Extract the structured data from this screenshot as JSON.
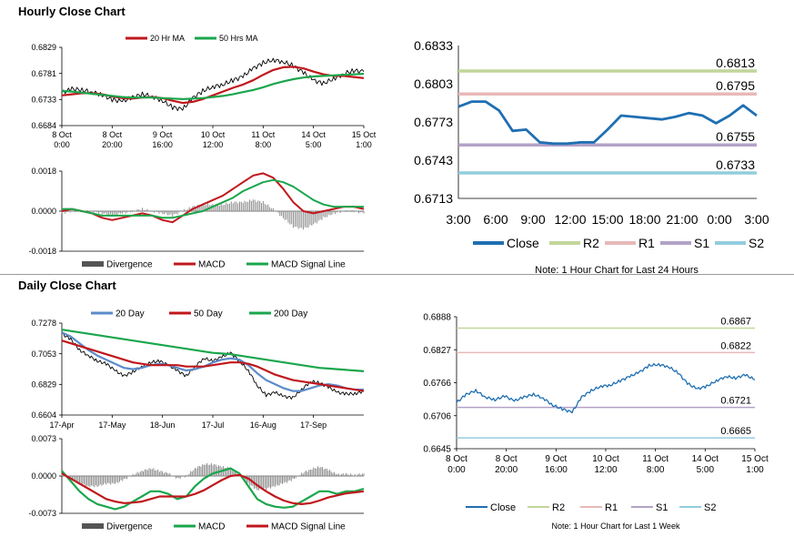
{
  "sections": {
    "hourly_title": "Hourly Close Chart",
    "daily_title": "Daily Close Chart"
  },
  "colors": {
    "close": "#1f6fb2",
    "ma20": "#c0171c",
    "ma50": "#1aa64c",
    "day20": "#5b8bc9",
    "day50": "#c0171c",
    "day200": "#1aa64c",
    "divergence": "#8c8c8c",
    "macd": "#c0171c",
    "signal": "#1aa64c",
    "r2": "#c2d69b",
    "r1": "#e6b9b8",
    "s1": "#b2a2c7",
    "s2": "#93cddd",
    "price": "#000000"
  },
  "chart_data": [
    {
      "id": "hourly-price",
      "type": "line",
      "legend": [
        "20 Hr MA",
        "50 Hrs MA"
      ],
      "ylim": [
        0.6684,
        0.6829
      ],
      "yticks": [
        "0.6829",
        "0.6781",
        "0.6733",
        "0.6684"
      ],
      "xlabels": [
        [
          "8 Oct",
          "0:00"
        ],
        [
          "8 Oct",
          "20:00"
        ],
        [
          "9 Oct",
          "16:00"
        ],
        [
          "10 Oct",
          "12:00"
        ],
        [
          "11 Oct",
          "8:00"
        ],
        [
          "14 Oct",
          "5:00"
        ],
        [
          "15 Oct",
          "1:00"
        ]
      ],
      "price": [
        0.6745,
        0.6752,
        0.675,
        0.6746,
        0.6741,
        0.6732,
        0.6729,
        0.6736,
        0.6742,
        0.6738,
        0.673,
        0.6718,
        0.6714,
        0.6735,
        0.6748,
        0.6756,
        0.676,
        0.6768,
        0.6775,
        0.679,
        0.68,
        0.6806,
        0.6802,
        0.6795,
        0.6782,
        0.6768,
        0.6762,
        0.6771,
        0.678,
        0.6786,
        0.6784
      ],
      "ma20": [
        0.674,
        0.6742,
        0.6744,
        0.6744,
        0.6742,
        0.6738,
        0.6735,
        0.6734,
        0.6736,
        0.6737,
        0.6735,
        0.673,
        0.6726,
        0.6728,
        0.6733,
        0.674,
        0.6747,
        0.6754,
        0.676,
        0.6768,
        0.6778,
        0.6787,
        0.6792,
        0.6793,
        0.679,
        0.6784,
        0.6779,
        0.6776,
        0.6776,
        0.6774,
        0.6772
      ],
      "ma50": [
        0.6748,
        0.6747,
        0.6745,
        0.6743,
        0.6741,
        0.6739,
        0.6737,
        0.6736,
        0.6736,
        0.6736,
        0.6735,
        0.6734,
        0.6733,
        0.6734,
        0.6735,
        0.6737,
        0.6739,
        0.6742,
        0.6746,
        0.675,
        0.6755,
        0.6761,
        0.6766,
        0.677,
        0.6773,
        0.6775,
        0.6776,
        0.6777,
        0.6778,
        0.6779,
        0.678
      ]
    },
    {
      "id": "hourly-macd",
      "type": "bar",
      "legend": [
        "Divergence",
        "MACD",
        "MACD Signal Line"
      ],
      "ylim": [
        -0.0018,
        0.0018
      ],
      "yticks": [
        "0.0018",
        "0.0000",
        "-0.0018"
      ],
      "macd": [
        0.0,
        0.0001,
        0.0,
        -0.0001,
        -0.0003,
        -0.0004,
        -0.0003,
        -0.0002,
        -0.0001,
        -0.0002,
        -0.0004,
        -0.0005,
        -0.0002,
        0.0001,
        0.0003,
        0.0005,
        0.0007,
        0.001,
        0.0013,
        0.0016,
        0.0017,
        0.0015,
        0.001,
        0.0004,
        0.0,
        -0.0001,
        0.0,
        0.0001,
        0.0002,
        0.0002,
        0.0001
      ],
      "signal": [
        0.0001,
        0.0001,
        0.0,
        -0.0001,
        -0.0002,
        -0.0002,
        -0.0002,
        -0.0002,
        -0.0002,
        -0.0002,
        -0.0003,
        -0.0003,
        -0.0002,
        -0.0001,
        0.0,
        0.0002,
        0.0004,
        0.0006,
        0.0009,
        0.0011,
        0.0013,
        0.0014,
        0.0013,
        0.0011,
        0.0008,
        0.0005,
        0.0003,
        0.0002,
        0.0002,
        0.0002,
        0.0002
      ],
      "divergence": [
        -0.0001,
        0.0,
        0.0,
        0.0,
        -0.0001,
        -0.0002,
        -0.0001,
        0.0,
        0.0001,
        0.0,
        -0.0001,
        -0.0002,
        0.0,
        0.0002,
        0.0003,
        0.0003,
        0.0003,
        0.0004,
        0.0004,
        0.0005,
        0.0004,
        0.0001,
        -0.0003,
        -0.0007,
        -0.0008,
        -0.0006,
        -0.0003,
        -0.0001,
        0.0,
        0.0,
        -0.0001
      ]
    },
    {
      "id": "hourly-24h",
      "type": "line",
      "legend": [
        "Close",
        "R2",
        "R1",
        "S1",
        "S2"
      ],
      "ylim": [
        0.6713,
        0.6833
      ],
      "yticks": [
        "0.6833",
        "0.6803",
        "0.6773",
        "0.6743",
        "0.6713"
      ],
      "xlabels": [
        "3:00",
        "6:00",
        "9:00",
        "12:00",
        "15:00",
        "18:00",
        "21:00",
        "0:00",
        "3:00"
      ],
      "close": [
        0.6785,
        0.6789,
        0.6789,
        0.6782,
        0.6766,
        0.6767,
        0.6757,
        0.6756,
        0.6756,
        0.6757,
        0.6757,
        0.6767,
        0.6778,
        0.6777,
        0.6776,
        0.6775,
        0.6777,
        0.678,
        0.6778,
        0.6772,
        0.6778,
        0.6786,
        0.6778
      ],
      "levels": {
        "r2": 0.6813,
        "r1": 0.6795,
        "s1": 0.6755,
        "s2": 0.6733
      },
      "level_labels": [
        "0.6813",
        "0.6795",
        "0.6755",
        "0.6733"
      ],
      "note": "Note: 1 Hour Chart for Last 24 Hours"
    },
    {
      "id": "daily-price",
      "type": "line",
      "legend": [
        "20 Day",
        "50 Day",
        "200 Day"
      ],
      "ylim": [
        0.6604,
        0.7278
      ],
      "yticks": [
        "0.7278",
        "0.7053",
        "0.6829",
        "0.6604"
      ],
      "xlabels": [
        "17-Apr",
        "17-May",
        "18-Jun",
        "17-Jul",
        "16-Aug",
        "17-Sep"
      ],
      "price": [
        0.72,
        0.716,
        0.708,
        0.704,
        0.7,
        0.698,
        0.693,
        0.689,
        0.692,
        0.696,
        0.699,
        0.7,
        0.697,
        0.693,
        0.689,
        0.696,
        0.702,
        0.7,
        0.703,
        0.706,
        0.7,
        0.693,
        0.682,
        0.675,
        0.677,
        0.674,
        0.673,
        0.679,
        0.685,
        0.684,
        0.681,
        0.677,
        0.676,
        0.676,
        0.678
      ],
      "day20": [
        0.721,
        0.718,
        0.713,
        0.708,
        0.704,
        0.701,
        0.698,
        0.695,
        0.694,
        0.695,
        0.697,
        0.698,
        0.697,
        0.695,
        0.693,
        0.694,
        0.696,
        0.699,
        0.701,
        0.702,
        0.701,
        0.697,
        0.691,
        0.686,
        0.683,
        0.68,
        0.678,
        0.678,
        0.68,
        0.682,
        0.683,
        0.682,
        0.68,
        0.679,
        0.679
      ],
      "day50": [
        0.715,
        0.713,
        0.711,
        0.709,
        0.707,
        0.705,
        0.703,
        0.701,
        0.699,
        0.698,
        0.697,
        0.697,
        0.697,
        0.697,
        0.696,
        0.696,
        0.696,
        0.697,
        0.698,
        0.699,
        0.699,
        0.698,
        0.696,
        0.693,
        0.69,
        0.688,
        0.686,
        0.685,
        0.684,
        0.683,
        0.682,
        0.681,
        0.68,
        0.679,
        0.678
      ],
      "day200": [
        0.723,
        0.722,
        0.721,
        0.72,
        0.719,
        0.718,
        0.717,
        0.716,
        0.715,
        0.714,
        0.713,
        0.712,
        0.711,
        0.71,
        0.709,
        0.708,
        0.707,
        0.706,
        0.7055,
        0.705,
        0.704,
        0.703,
        0.702,
        0.701,
        0.7,
        0.699,
        0.698,
        0.697,
        0.696,
        0.695,
        0.6945,
        0.694,
        0.6935,
        0.693,
        0.6925
      ]
    },
    {
      "id": "daily-macd",
      "type": "bar",
      "legend": [
        "Divergence",
        "MACD",
        "MACD Signal Line"
      ],
      "ylim": [
        -0.0073,
        0.0073
      ],
      "yticks": [
        "0.0073",
        "0.0000",
        "-0.0073"
      ],
      "macd": [
        0.001,
        -0.001,
        -0.003,
        -0.0045,
        -0.0055,
        -0.006,
        -0.0065,
        -0.006,
        -0.005,
        -0.004,
        -0.003,
        -0.003,
        -0.0035,
        -0.0045,
        -0.004,
        -0.002,
        -0.0005,
        0.0005,
        0.001,
        0.0015,
        0.0005,
        -0.002,
        -0.0045,
        -0.0055,
        -0.006,
        -0.0062,
        -0.006,
        -0.005,
        -0.004,
        -0.003,
        -0.003,
        -0.0035,
        -0.003,
        -0.003,
        -0.0025
      ],
      "signal": [
        0.0005,
        -0.0005,
        -0.0015,
        -0.0025,
        -0.0035,
        -0.0045,
        -0.005,
        -0.0053,
        -0.0052,
        -0.005,
        -0.0045,
        -0.004,
        -0.004,
        -0.004,
        -0.004,
        -0.0035,
        -0.0028,
        -0.0018,
        -0.0008,
        0.0,
        0.0002,
        -0.0005,
        -0.0018,
        -0.003,
        -0.004,
        -0.0048,
        -0.0053,
        -0.0055,
        -0.0053,
        -0.0048,
        -0.0042,
        -0.0038,
        -0.0034,
        -0.0032,
        -0.003
      ],
      "divergence": [
        0.0005,
        -0.0005,
        -0.0015,
        -0.002,
        -0.002,
        -0.0015,
        -0.0015,
        -0.0007,
        0.0002,
        0.001,
        0.0015,
        0.001,
        0.0005,
        -0.0005,
        0.0,
        0.0015,
        0.0023,
        0.0023,
        0.0018,
        0.0015,
        0.0003,
        -0.0015,
        -0.0027,
        -0.0025,
        -0.002,
        -0.0014,
        -0.0007,
        0.0005,
        0.0013,
        0.0018,
        0.0012,
        0.0003,
        0.0004,
        0.0002,
        0.0005
      ]
    },
    {
      "id": "weekly",
      "type": "line",
      "legend": [
        "Close",
        "R2",
        "R1",
        "S1",
        "S2"
      ],
      "ylim": [
        0.6645,
        0.6888
      ],
      "yticks": [
        "0.6888",
        "0.6827",
        "0.6766",
        "0.6706",
        "0.6645"
      ],
      "xlabels": [
        [
          "8 Oct",
          "0:00"
        ],
        [
          "8 Oct",
          "20:00"
        ],
        [
          "9 Oct",
          "16:00"
        ],
        [
          "10 Oct",
          "12:00"
        ],
        [
          "11 Oct",
          "8:00"
        ],
        [
          "14 Oct",
          "5:00"
        ],
        [
          "15 Oct",
          "1:00"
        ]
      ],
      "close": [
        0.673,
        0.6745,
        0.6752,
        0.674,
        0.6735,
        0.6742,
        0.6733,
        0.674,
        0.6745,
        0.6738,
        0.6725,
        0.6718,
        0.6712,
        0.674,
        0.6752,
        0.676,
        0.6762,
        0.677,
        0.6778,
        0.6786,
        0.6798,
        0.68,
        0.6796,
        0.6785,
        0.6765,
        0.6755,
        0.676,
        0.677,
        0.6778,
        0.6775,
        0.6781,
        0.6772
      ],
      "levels": {
        "r2": 0.6867,
        "r1": 0.6822,
        "s1": 0.6721,
        "s2": 0.6665
      },
      "level_labels": [
        "0.6867",
        "0.6822",
        "0.6721",
        "0.6665"
      ],
      "note": "Note: 1 Hour Chart for Last 1 Week"
    }
  ]
}
